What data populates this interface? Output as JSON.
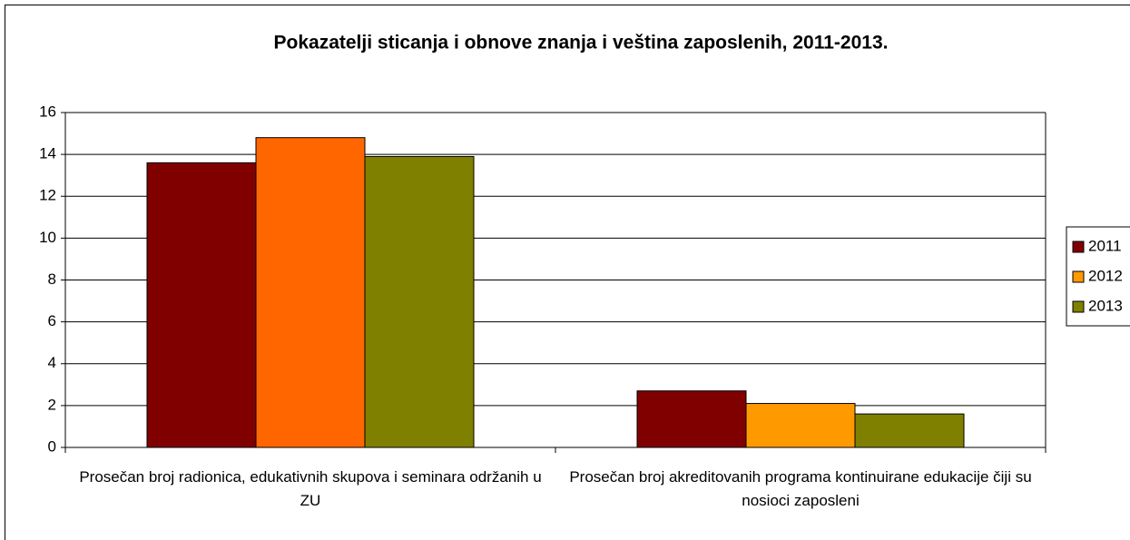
{
  "chart_data": {
    "type": "bar",
    "title": "Pokazatelji sticanja i obnove znanja i veština zaposlenih, 2011-2013.",
    "categories": [
      "Prosečan broj radionica, edukativnih skupova i seminara održanih u ZU",
      "Prosečan broj akreditovanih programa kontinuirane edukacije čiji su nosioci zaposleni"
    ],
    "series": [
      {
        "name": "2011",
        "color": "#800000",
        "values": [
          13.6,
          2.7
        ]
      },
      {
        "name": "2012",
        "color": "#ff9900",
        "colors": [
          "#ff6600",
          "#ff9900"
        ],
        "values": [
          14.8,
          2.1
        ]
      },
      {
        "name": "2013",
        "color": "#808000",
        "values": [
          13.9,
          1.6
        ]
      }
    ],
    "ylim": [
      0,
      16
    ],
    "yticks": [
      0,
      2,
      4,
      6,
      8,
      10,
      12,
      14,
      16
    ],
    "grid": true,
    "legend": "right"
  }
}
